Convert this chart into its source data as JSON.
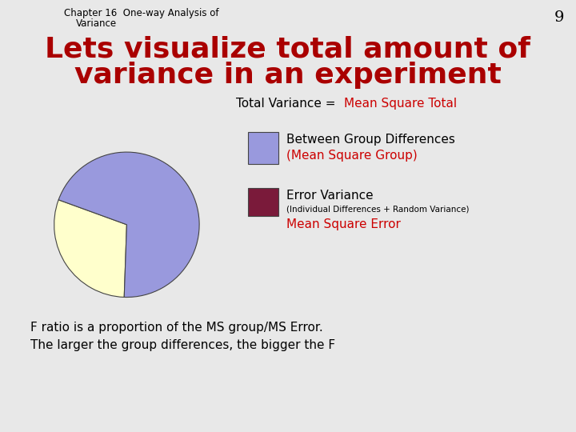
{
  "background_color": "#e8e8e8",
  "slide_number": "9",
  "chapter_text": "Chapter 16  One-way Analysis of\n        Variance",
  "title_line1": "Lets visualize total amount of",
  "title_line2": "variance in an experiment",
  "title_color": "#aa0000",
  "title_fontsize": 26,
  "pie_values": [
    30,
    70
  ],
  "pie_colors": [
    "#ffffcc",
    "#9999dd"
  ],
  "total_variance_text_black": "Total Variance = ",
  "total_variance_text_red": "Mean Square Total",
  "between_group_label_black": "Between Group Differences",
  "between_group_label_red": "(Mean Square Group)",
  "error_variance_label_black": "Error Variance",
  "error_variance_sub_black": "(Individual Differences + Random Variance)",
  "error_variance_label_red": "Mean Square Error",
  "between_color": "#9999dd",
  "error_color": "#7a1a3a",
  "bottom_text_line1": "F ratio is a proportion of the MS group/MS Error.",
  "bottom_text_line2": "The larger the group differences, the bigger the F",
  "red_color": "#cc0000"
}
